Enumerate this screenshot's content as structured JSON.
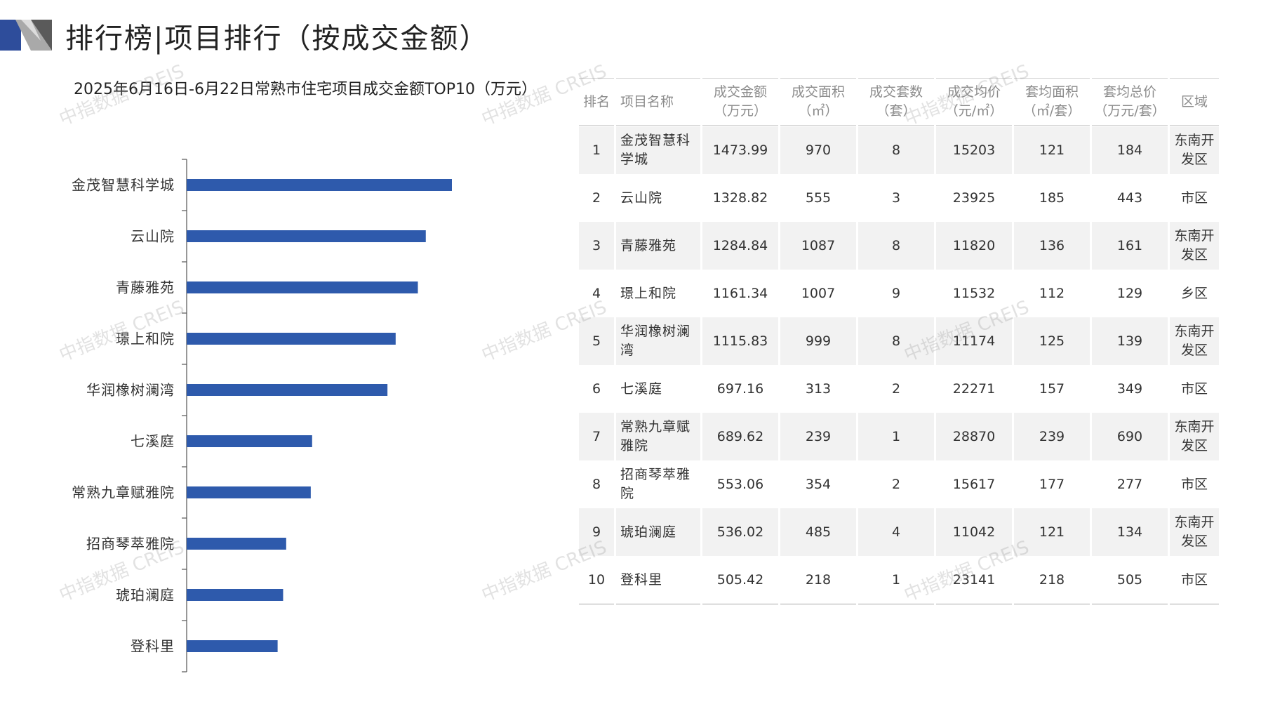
{
  "header": {
    "title": "排行榜|项目排行（按成交金额）",
    "accent_color": "#2e4d9b"
  },
  "watermark_text": "中指数据 CREIS",
  "chart_data": {
    "type": "bar",
    "orientation": "horizontal",
    "title": "2025年6月16日-6月22日常熟市住宅项目成交金额TOP10（万元）",
    "categories": [
      "金茂智慧科学城",
      "云山院",
      "青藤雅苑",
      "璟上和院",
      "华润橡树澜湾",
      "七溪庭",
      "常熟九章赋雅院",
      "招商琴萃雅院",
      "琥珀澜庭",
      "登科里"
    ],
    "values": [
      1473.99,
      1328.82,
      1284.84,
      1161.34,
      1115.83,
      697.16,
      689.62,
      553.06,
      536.02,
      505.42
    ],
    "xlabel": "",
    "ylabel": "",
    "xlim": [
      0,
      1600
    ],
    "bar_color": "#2e5aac",
    "grid": false,
    "legend": "none"
  },
  "table": {
    "headers": [
      [
        "排名"
      ],
      [
        "项目名称"
      ],
      [
        "成交金额",
        "（万元）"
      ],
      [
        "成交面积",
        "（㎡）"
      ],
      [
        "成交套数",
        "（套）"
      ],
      [
        "成交均价",
        "（元/㎡）"
      ],
      [
        "套均面积",
        "（㎡/套）"
      ],
      [
        "套均总价",
        "（万元/套）"
      ],
      [
        "区域"
      ]
    ],
    "rows": [
      {
        "rank": "1",
        "name": [
          "金茂智慧科",
          "学城"
        ],
        "amount": "1473.99",
        "area": "970",
        "units": "8",
        "avg_price": "15203",
        "avg_area": "121",
        "avg_total": "184",
        "region": [
          "东南开",
          "发区"
        ]
      },
      {
        "rank": "2",
        "name": [
          "云山院"
        ],
        "amount": "1328.82",
        "area": "555",
        "units": "3",
        "avg_price": "23925",
        "avg_area": "185",
        "avg_total": "443",
        "region": [
          "市区"
        ]
      },
      {
        "rank": "3",
        "name": [
          "青藤雅苑"
        ],
        "amount": "1284.84",
        "area": "1087",
        "units": "8",
        "avg_price": "11820",
        "avg_area": "136",
        "avg_total": "161",
        "region": [
          "东南开",
          "发区"
        ]
      },
      {
        "rank": "4",
        "name": [
          "璟上和院"
        ],
        "amount": "1161.34",
        "area": "1007",
        "units": "9",
        "avg_price": "11532",
        "avg_area": "112",
        "avg_total": "129",
        "region": [
          "乡区"
        ]
      },
      {
        "rank": "5",
        "name": [
          "华润橡树澜",
          "湾"
        ],
        "amount": "1115.83",
        "area": "999",
        "units": "8",
        "avg_price": "11174",
        "avg_area": "125",
        "avg_total": "139",
        "region": [
          "东南开",
          "发区"
        ]
      },
      {
        "rank": "6",
        "name": [
          "七溪庭"
        ],
        "amount": "697.16",
        "area": "313",
        "units": "2",
        "avg_price": "22271",
        "avg_area": "157",
        "avg_total": "349",
        "region": [
          "市区"
        ]
      },
      {
        "rank": "7",
        "name": [
          "常熟九章赋",
          "雅院"
        ],
        "amount": "689.62",
        "area": "239",
        "units": "1",
        "avg_price": "28870",
        "avg_area": "239",
        "avg_total": "690",
        "region": [
          "东南开",
          "发区"
        ]
      },
      {
        "rank": "8",
        "name": [
          "招商琴萃雅",
          "院"
        ],
        "amount": "553.06",
        "area": "354",
        "units": "2",
        "avg_price": "15617",
        "avg_area": "177",
        "avg_total": "277",
        "region": [
          "市区"
        ]
      },
      {
        "rank": "9",
        "name": [
          "琥珀澜庭"
        ],
        "amount": "536.02",
        "area": "485",
        "units": "4",
        "avg_price": "11042",
        "avg_area": "121",
        "avg_total": "134",
        "region": [
          "东南开",
          "发区"
        ]
      },
      {
        "rank": "10",
        "name": [
          "登科里"
        ],
        "amount": "505.42",
        "area": "218",
        "units": "1",
        "avg_price": "23141",
        "avg_area": "218",
        "avg_total": "505",
        "region": [
          "市区"
        ]
      }
    ]
  }
}
